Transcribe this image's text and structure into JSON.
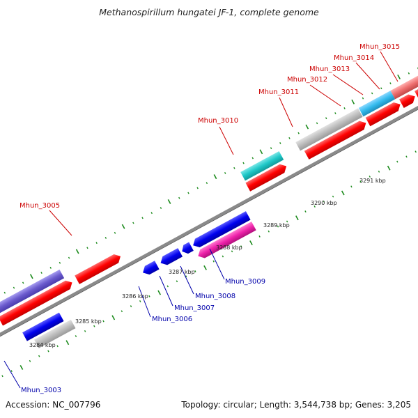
{
  "title": "Methanospirillum hungatei JF-1, complete genome",
  "accession": "Accession: NC_007796",
  "topology": "Topology: circular; Length: 3,544,738 bp; Genes: 3,205",
  "colors": {
    "red": "#ff0000",
    "blue": "#0000ee",
    "grey": "#bdbdbd",
    "cyan": "#1ec8c8",
    "sky": "#33bbee",
    "pink": "#ee6e6e",
    "magenta": "#ee22aa",
    "purple": "#6a5acd",
    "backbone": "#8a8a8a",
    "tick": "#1a8a1a",
    "label_top": "#cc0000",
    "label_bottom": "#0000aa"
  },
  "scale_labels": [
    "3284 kbp",
    "3285 kbp",
    "3286 kbp",
    "3287 kbp",
    "3288 kbp",
    "3289 kbp",
    "3290 kbp",
    "3291 kbp"
  ],
  "genes": [
    {
      "name": "Mhun_3003",
      "strand": "minus",
      "label": "Mhun_3003"
    },
    {
      "name": "Mhun_3005",
      "strand": "plus",
      "label": "Mhun_3005"
    },
    {
      "name": "Mhun_3006",
      "strand": "minus",
      "label": "Mhun_3006"
    },
    {
      "name": "Mhun_3007",
      "strand": "minus",
      "label": "Mhun_3007"
    },
    {
      "name": "Mhun_3008",
      "strand": "minus",
      "label": "Mhun_3008"
    },
    {
      "name": "Mhun_3009",
      "strand": "minus",
      "label": "Mhun_3009"
    },
    {
      "name": "Mhun_3010",
      "strand": "plus",
      "label": "Mhun_3010"
    },
    {
      "name": "Mhun_3011",
      "strand": "plus",
      "label": "Mhun_3011"
    },
    {
      "name": "Mhun_3012",
      "strand": "plus",
      "label": "Mhun_3012"
    },
    {
      "name": "Mhun_3013",
      "strand": "plus",
      "label": "Mhun_3013"
    },
    {
      "name": "Mhun_3014",
      "strand": "plus",
      "label": "Mhun_3014"
    },
    {
      "name": "Mhun_3015",
      "strand": "plus",
      "label": "Mhun_3015"
    }
  ]
}
